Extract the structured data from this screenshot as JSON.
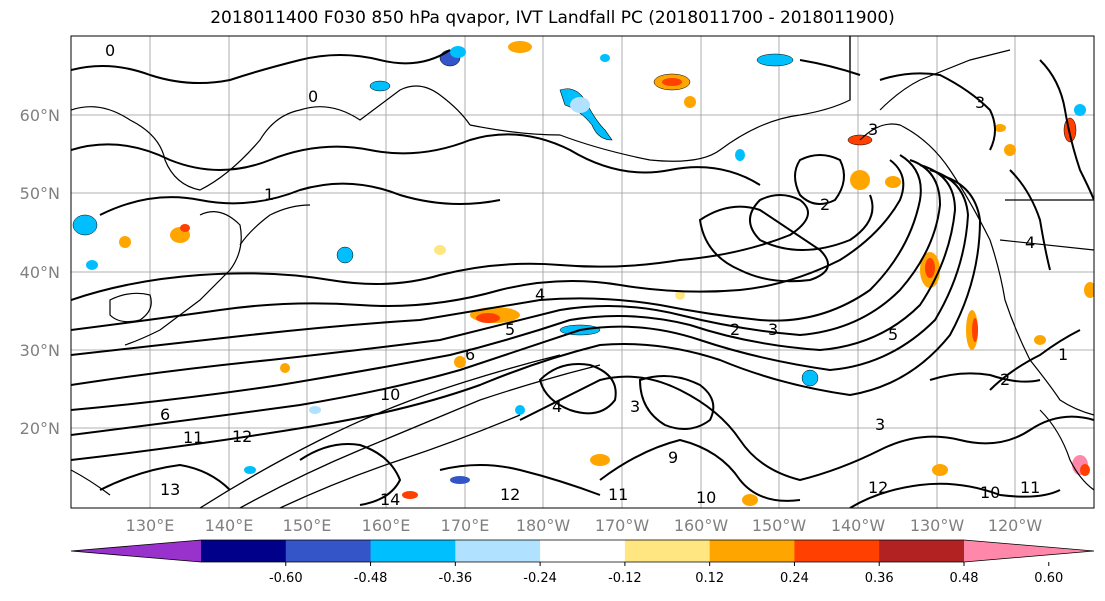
{
  "title": "2018011400 F030 850 hPa qvapor, IVT Landfall PC (2018011700 - 2018011900)",
  "map": {
    "lat_labels": [
      "60°N",
      "50°N",
      "40°N",
      "30°N",
      "20°N"
    ],
    "lon_labels": [
      "130°E",
      "140°E",
      "150°E",
      "160°E",
      "170°E",
      "180°W",
      "170°W",
      "160°W",
      "150°W",
      "140°W",
      "130°W",
      "120°W"
    ],
    "contour_labels": [
      "0",
      "0",
      "1",
      "2",
      "3",
      "4",
      "4",
      "5",
      "6",
      "6",
      "9",
      "10",
      "11",
      "12",
      "13",
      "14",
      "11",
      "12",
      "10",
      "12",
      "11",
      "10",
      "3",
      "2",
      "1",
      "5",
      "3",
      "2",
      "3",
      "4",
      "3"
    ]
  },
  "colorbar": {
    "colors": [
      "#9932cc",
      "#00008b",
      "#3455c8",
      "#00bfff",
      "#b0e2ff",
      "#ffffff",
      "#ffe680",
      "#ffa500",
      "#ff4000",
      "#b22222",
      "#ff88aa"
    ],
    "tick_labels": [
      "-0.60",
      "-0.48",
      "-0.36",
      "-0.24",
      "-0.12",
      "0.12",
      "0.24",
      "0.36",
      "0.48",
      "0.60"
    ]
  }
}
